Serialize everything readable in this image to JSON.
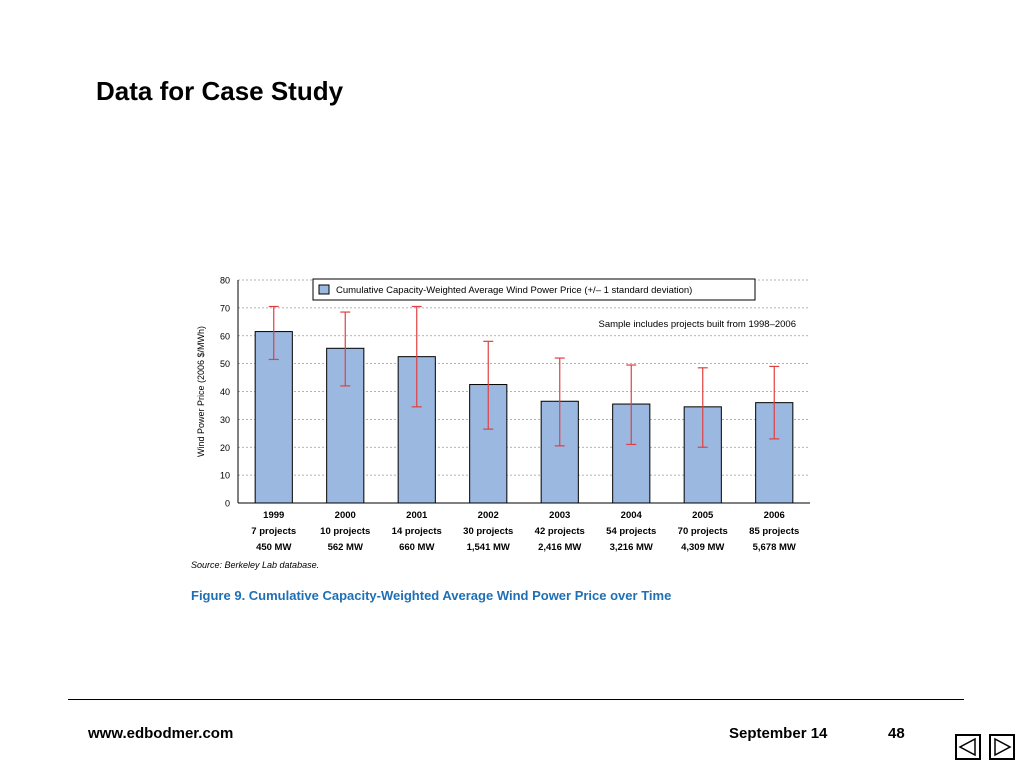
{
  "slide": {
    "title": "Data for Case Study",
    "source_note": "Source: Berkeley Lab database.",
    "figure_caption": "Figure 9.  Cumulative Capacity-Weighted Average Wind Power Price over Time"
  },
  "footer": {
    "url": "www.edbodmer.com",
    "date": "September 14",
    "page_number": "48"
  },
  "nav": {
    "prev_icon": "triangle-left-icon",
    "next_icon": "triangle-right-icon"
  },
  "colors": {
    "bar_fill": "#9ab8e0",
    "error_bar": "#e04040",
    "caption": "#1f6fb5",
    "grid": "#999999"
  },
  "chart_data": {
    "type": "bar",
    "title": "",
    "xlabel": "",
    "ylabel": "Wind Power Price (2006 $/MWh)",
    "ylim": [
      0,
      80
    ],
    "yticks": [
      0,
      10,
      20,
      30,
      40,
      50,
      60,
      70,
      80
    ],
    "grid": "horizontal dotted",
    "legend": {
      "position": "top",
      "entries": [
        "Cumulative Capacity-Weighted Average Wind Power Price (+/– 1 standard deviation)"
      ]
    },
    "annotation": "Sample includes projects built from 1998–2006",
    "categories": [
      [
        "1999",
        "7 projects",
        "450 MW"
      ],
      [
        "2000",
        "10 projects",
        "562 MW"
      ],
      [
        "2001",
        "14 projects",
        "660 MW"
      ],
      [
        "2002",
        "30 projects",
        "1,541 MW"
      ],
      [
        "2003",
        "42 projects",
        "2,416 MW"
      ],
      [
        "2004",
        "54 projects",
        "3,216 MW"
      ],
      [
        "2005",
        "70 projects",
        "4,309 MW"
      ],
      [
        "2006",
        "85 projects",
        "5,678 MW"
      ]
    ],
    "series": [
      {
        "name": "Cumulative Capacity-Weighted Average Wind Power Price (+/– 1 standard deviation)",
        "values": [
          61.5,
          55.5,
          52.5,
          42.5,
          36.5,
          35.5,
          34.5,
          36.0
        ],
        "error_low": [
          51.5,
          42.0,
          34.5,
          26.5,
          20.5,
          21.0,
          20.0,
          23.0
        ],
        "error_high": [
          70.5,
          68.5,
          70.5,
          58.0,
          52.0,
          49.5,
          48.5,
          49.0
        ]
      }
    ]
  }
}
